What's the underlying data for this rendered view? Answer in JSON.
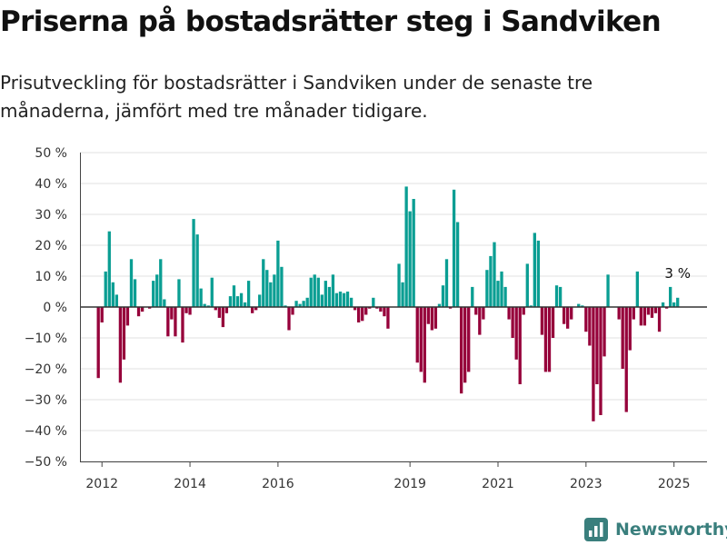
{
  "header": {
    "title": "Priserna på bostadsrätter steg i Sandviken",
    "subtitle": "Prisutveckling för bostadsrätter i Sandviken under de senaste tre månaderna, jämfört med tre månader tidigare."
  },
  "brand": {
    "name": "Newsworthy",
    "icon": "newsworthy-logo-icon"
  },
  "colors": {
    "positive": "#0a9e93",
    "negative": "#96003a",
    "grid": "#e0e0e0",
    "zero": "#333333"
  },
  "chart_data": {
    "type": "bar",
    "grid": true,
    "ylim": [
      -50,
      50
    ],
    "y_ticks": [
      -50,
      -40,
      -30,
      -20,
      -10,
      0,
      10,
      20,
      30,
      40,
      50
    ],
    "y_tick_labels": [
      "−50 %",
      "−40 %",
      "−30 %",
      "−20 %",
      "−10 %",
      "0 %",
      "10 %",
      "20 %",
      "30 %",
      "40 %",
      "50 %"
    ],
    "x_ticks": [
      2012,
      2014,
      2016,
      2019,
      2021,
      2023,
      2025
    ],
    "x_tick_labels": [
      "2012",
      "2014",
      "2016",
      "2019",
      "2021",
      "2023",
      "2025"
    ],
    "x_range": [
      2011.5,
      2025.75
    ],
    "annotation": {
      "text": "3 %",
      "x": 2025.0,
      "y": 3
    },
    "bars": [
      [
        2011.917,
        -23
      ],
      [
        2012.0,
        -5
      ],
      [
        2012.083,
        11.5
      ],
      [
        2012.167,
        24.5
      ],
      [
        2012.25,
        8
      ],
      [
        2012.333,
        4
      ],
      [
        2012.417,
        -24.5
      ],
      [
        2012.5,
        -17
      ],
      [
        2012.583,
        -6
      ],
      [
        2012.667,
        15.5
      ],
      [
        2012.75,
        9
      ],
      [
        2012.833,
        -3
      ],
      [
        2012.917,
        -1.5
      ],
      [
        2013.083,
        -0.5
      ],
      [
        2013.167,
        8.5
      ],
      [
        2013.25,
        10.5
      ],
      [
        2013.333,
        15.5
      ],
      [
        2013.417,
        2.5
      ],
      [
        2013.5,
        -9.5
      ],
      [
        2013.583,
        -4
      ],
      [
        2013.667,
        -9.5
      ],
      [
        2013.75,
        9
      ],
      [
        2013.833,
        -11.5
      ],
      [
        2013.917,
        -2
      ],
      [
        2014.0,
        -2.5
      ],
      [
        2014.083,
        28.5
      ],
      [
        2014.167,
        23.5
      ],
      [
        2014.25,
        6
      ],
      [
        2014.333,
        1
      ],
      [
        2014.417,
        0.5
      ],
      [
        2014.5,
        9.5
      ],
      [
        2014.583,
        -1
      ],
      [
        2014.667,
        -3.5
      ],
      [
        2014.75,
        -6.5
      ],
      [
        2014.833,
        -2
      ],
      [
        2014.917,
        3.5
      ],
      [
        2015.0,
        7
      ],
      [
        2015.083,
        3.5
      ],
      [
        2015.167,
        4.5
      ],
      [
        2015.25,
        1.5
      ],
      [
        2015.333,
        8.5
      ],
      [
        2015.417,
        -2
      ],
      [
        2015.5,
        -1
      ],
      [
        2015.583,
        4
      ],
      [
        2015.667,
        15.5
      ],
      [
        2015.75,
        12
      ],
      [
        2015.833,
        8
      ],
      [
        2015.917,
        10.5
      ],
      [
        2016.0,
        21.5
      ],
      [
        2016.083,
        13
      ],
      [
        2016.167,
        0.5
      ],
      [
        2016.25,
        -7.5
      ],
      [
        2016.333,
        -2.5
      ],
      [
        2016.417,
        2
      ],
      [
        2016.5,
        1
      ],
      [
        2016.583,
        2
      ],
      [
        2016.667,
        3
      ],
      [
        2016.75,
        9.5
      ],
      [
        2016.833,
        10.5
      ],
      [
        2016.917,
        9.5
      ],
      [
        2017.0,
        4
      ],
      [
        2017.083,
        8.5
      ],
      [
        2017.167,
        6.5
      ],
      [
        2017.25,
        10.5
      ],
      [
        2017.333,
        4.5
      ],
      [
        2017.417,
        5
      ],
      [
        2017.5,
        4.5
      ],
      [
        2017.583,
        5
      ],
      [
        2017.667,
        3
      ],
      [
        2017.75,
        -1
      ],
      [
        2017.833,
        -5
      ],
      [
        2017.917,
        -4.5
      ],
      [
        2018.0,
        -2.5
      ],
      [
        2018.083,
        -0.5
      ],
      [
        2018.167,
        3
      ],
      [
        2018.25,
        -0.5
      ],
      [
        2018.333,
        -1.5
      ],
      [
        2018.417,
        -3
      ],
      [
        2018.5,
        -7
      ],
      [
        2018.75,
        14
      ],
      [
        2018.833,
        8
      ],
      [
        2018.917,
        39
      ],
      [
        2019.0,
        31
      ],
      [
        2019.083,
        35
      ],
      [
        2019.167,
        -18
      ],
      [
        2019.25,
        -21
      ],
      [
        2019.333,
        -24.5
      ],
      [
        2019.417,
        -5.5
      ],
      [
        2019.5,
        -7.5
      ],
      [
        2019.583,
        -7
      ],
      [
        2019.667,
        1
      ],
      [
        2019.75,
        7
      ],
      [
        2019.833,
        15.5
      ],
      [
        2019.917,
        -0.5
      ],
      [
        2020.0,
        38
      ],
      [
        2020.083,
        27.5
      ],
      [
        2020.167,
        -28
      ],
      [
        2020.25,
        -24.5
      ],
      [
        2020.333,
        -21
      ],
      [
        2020.417,
        6.5
      ],
      [
        2020.5,
        -2.5
      ],
      [
        2020.583,
        -9
      ],
      [
        2020.667,
        -4
      ],
      [
        2020.75,
        12
      ],
      [
        2020.833,
        16.5
      ],
      [
        2020.917,
        21
      ],
      [
        2021.0,
        8.5
      ],
      [
        2021.083,
        11.5
      ],
      [
        2021.167,
        6.5
      ],
      [
        2021.25,
        -4
      ],
      [
        2021.333,
        -10
      ],
      [
        2021.417,
        -17
      ],
      [
        2021.5,
        -25
      ],
      [
        2021.583,
        -2.5
      ],
      [
        2021.667,
        14
      ],
      [
        2021.75,
        0.5
      ],
      [
        2021.833,
        24
      ],
      [
        2021.917,
        21.5
      ],
      [
        2022.0,
        -9
      ],
      [
        2022.083,
        -21
      ],
      [
        2022.167,
        -21
      ],
      [
        2022.25,
        -10
      ],
      [
        2022.333,
        7
      ],
      [
        2022.417,
        6.5
      ],
      [
        2022.5,
        -5.5
      ],
      [
        2022.583,
        -7
      ],
      [
        2022.667,
        -4
      ],
      [
        2022.833,
        1
      ],
      [
        2022.917,
        0.5
      ],
      [
        2023.0,
        -8
      ],
      [
        2023.083,
        -12.5
      ],
      [
        2023.167,
        -37
      ],
      [
        2023.25,
        -25
      ],
      [
        2023.333,
        -35
      ],
      [
        2023.417,
        -16
      ],
      [
        2023.5,
        10.5
      ],
      [
        2023.75,
        -4
      ],
      [
        2023.833,
        -20
      ],
      [
        2023.917,
        -34
      ],
      [
        2024.0,
        -14
      ],
      [
        2024.083,
        -4
      ],
      [
        2024.167,
        11.5
      ],
      [
        2024.25,
        -6
      ],
      [
        2024.333,
        -6
      ],
      [
        2024.417,
        -2.5
      ],
      [
        2024.5,
        -3.5
      ],
      [
        2024.583,
        -2
      ],
      [
        2024.667,
        -8
      ],
      [
        2024.75,
        1.5
      ],
      [
        2024.833,
        -0.5
      ],
      [
        2024.917,
        6.5
      ],
      [
        2025.0,
        1.5
      ],
      [
        2025.083,
        3
      ]
    ]
  }
}
